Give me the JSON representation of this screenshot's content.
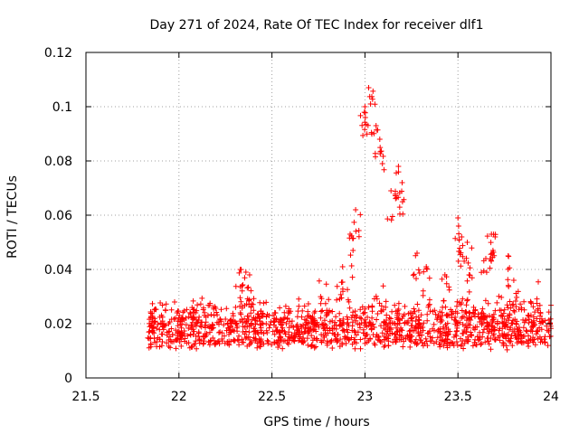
{
  "chart_data": {
    "type": "scatter",
    "title": "Day 271 of 2024, Rate Of TEC Index for receiver dlf1",
    "xlabel": "GPS time / hours",
    "ylabel": "ROTI / TECUs",
    "xlim": [
      21.5,
      24
    ],
    "ylim": [
      0,
      0.12
    ],
    "x_ticks": [
      21.5,
      22,
      22.5,
      23,
      23.5,
      24
    ],
    "x_tick_labels": [
      "21.5",
      "22",
      "22.5",
      "23",
      "23.5",
      "24"
    ],
    "y_ticks": [
      0,
      0.02,
      0.04,
      0.06,
      0.08,
      0.1,
      0.12
    ],
    "y_tick_labels": [
      "0",
      "0.02",
      "0.04",
      "0.06",
      "0.08",
      "0.1",
      "0.12"
    ],
    "grid": true,
    "marker": "+",
    "color": "#ff0000",
    "series": [
      {
        "name": "ROTI",
        "x_start": 21.83,
        "x_end": 24.0,
        "baseline_band": [
          0.005,
          0.03
        ],
        "highlights": {
          "x": [
            23.0,
            23.02,
            23.03,
            23.06,
            23.08,
            23.14,
            23.18,
            23.2,
            22.95,
            22.92,
            23.5,
            23.52,
            23.55,
            23.65,
            23.68,
            23.7,
            22.33,
            22.36,
            22.38,
            22.88,
            23.28,
            23.33,
            23.43,
            23.56,
            23.77,
            23.8
          ],
          "y": [
            0.1,
            0.107,
            0.101,
            0.093,
            0.088,
            0.069,
            0.078,
            0.072,
            0.062,
            0.053,
            0.059,
            0.052,
            0.05,
            0.044,
            0.053,
            0.052,
            0.04,
            0.039,
            0.038,
            0.041,
            0.046,
            0.041,
            0.038,
            0.038,
            0.045,
            0.036
          ]
        }
      }
    ]
  }
}
